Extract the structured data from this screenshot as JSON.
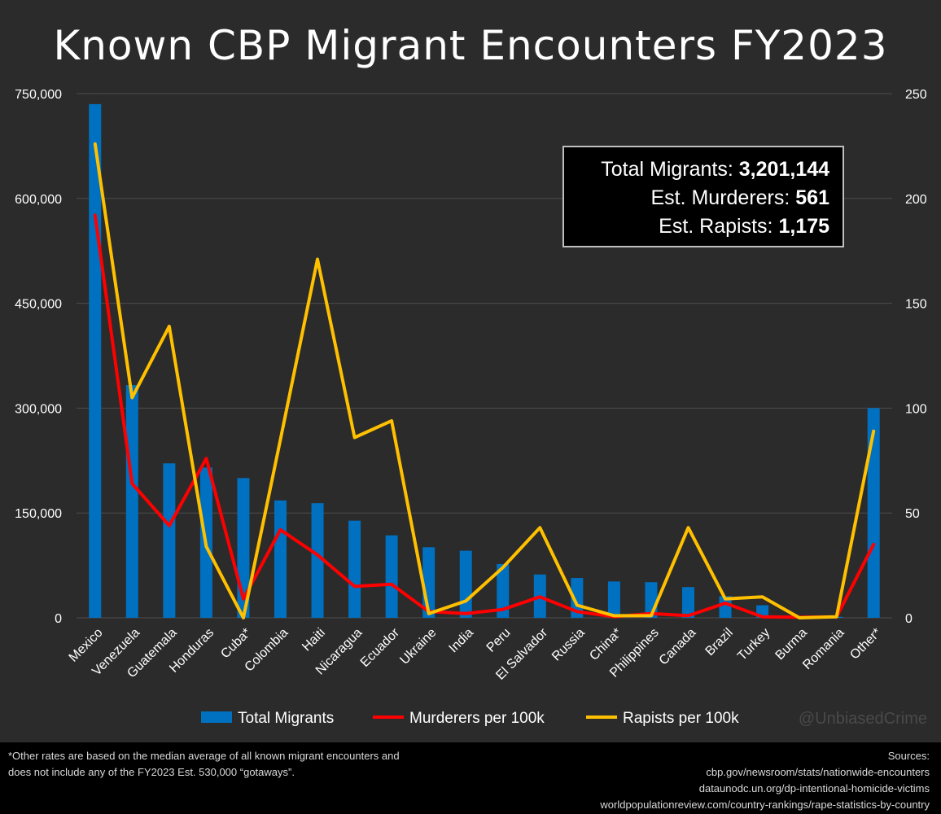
{
  "title": "Known CBP Migrant Encounters FY2023",
  "stats": {
    "total_label": "Total Migrants:",
    "total_value": "3,201,144",
    "murderers_label": "Est. Murderers:",
    "murderers_value": "561",
    "rapists_label": "Est. Rapists:",
    "rapists_value": "1,175"
  },
  "watermark": "@UnbiasedCrime",
  "footer": {
    "note_line1": "*Other rates are based on the median average of all known migrant encounters and",
    "note_line2": "does not include any of the FY2023 Est. 530,000 “gotaways”.",
    "sources_title": "Sources:",
    "source1": "cbp.gov/newsroom/stats/nationwide-encounters",
    "source2": "dataunodc.un.org/dp-intentional-homicide-victims",
    "source3": "worldpopulationreview.com/country-rankings/rape-statistics-by-country"
  },
  "colors": {
    "background": "#2b2b2b",
    "bar": "#0070c0",
    "murderers": "#ff0000",
    "rapists": "#ffc000",
    "grid": "#4d4d4d"
  },
  "chart_data": {
    "type": "bar",
    "title": "Known CBP Migrant Encounters FY2023",
    "categories": [
      "Mexico",
      "Venezuela",
      "Guatemala",
      "Honduras",
      "Cuba*",
      "Colombia",
      "Haiti",
      "Nicaragua",
      "Ecuador",
      "Ukraine",
      "India",
      "Peru",
      "El Salvador",
      "Russia",
      "China*",
      "Philippines",
      "Canada",
      "Brazil",
      "Turkey",
      "Burma",
      "Romania",
      "Other*"
    ],
    "y_left": {
      "ylim": [
        0,
        750000
      ],
      "ticks": [
        0,
        150000,
        300000,
        450000,
        600000,
        750000
      ],
      "tick_labels": [
        "0",
        "150,000",
        "300,000",
        "450,000",
        "600,000",
        "750,000"
      ]
    },
    "y_right": {
      "ylim": [
        0,
        250
      ],
      "ticks": [
        0,
        50,
        100,
        150,
        200,
        250
      ],
      "tick_labels": [
        "0",
        "50",
        "100",
        "150",
        "200",
        "250"
      ]
    },
    "grid": true,
    "legend_position": "bottom",
    "series": [
      {
        "name": "Total Migrants",
        "kind": "bar",
        "axis": "left",
        "color": "#0070c0",
        "values": [
          735000,
          333000,
          221000,
          215000,
          200000,
          168000,
          164000,
          139000,
          118000,
          101000,
          96000,
          77000,
          62000,
          57000,
          52000,
          51000,
          44000,
          31000,
          18000,
          2000,
          1500,
          300000
        ]
      },
      {
        "name": "Murderers per 100k",
        "kind": "line",
        "axis": "right",
        "color": "#ff0000",
        "values": [
          192,
          64,
          44,
          76,
          9,
          42,
          30,
          15,
          16,
          3,
          2,
          4,
          10,
          3,
          0.5,
          2,
          1,
          7,
          0.5,
          0.3,
          0.5,
          35
        ]
      },
      {
        "name": "Rapists per 100k",
        "kind": "line",
        "axis": "right",
        "color": "#ffc000",
        "values": [
          226,
          105,
          139,
          34,
          0,
          85,
          171,
          86,
          94,
          2,
          8,
          24,
          43,
          6,
          1,
          1,
          43,
          9,
          10,
          0,
          0.5,
          89
        ]
      }
    ]
  }
}
